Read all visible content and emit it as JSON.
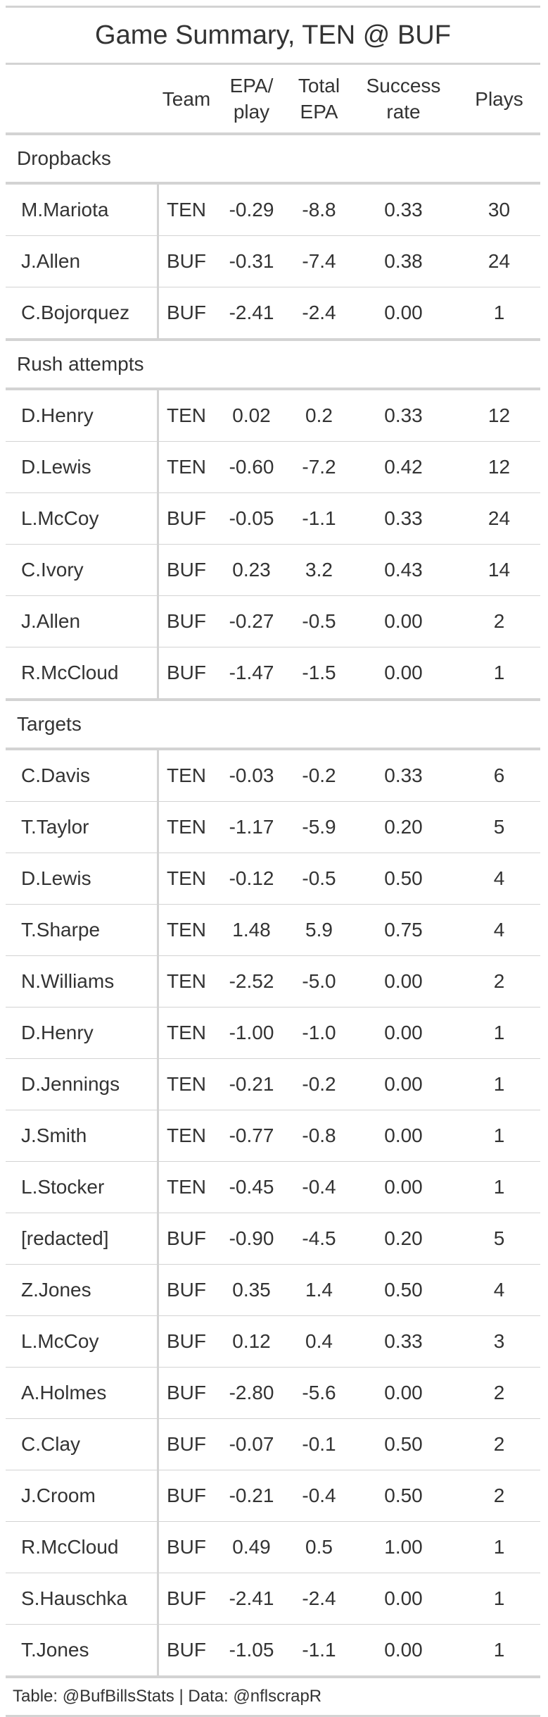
{
  "title": "Game Summary, TEN @ BUF",
  "columns": {
    "name": "",
    "team": "Team",
    "epa_line1": "EPA/",
    "epa_line2": "play",
    "total_line1": "Total",
    "total_line2": "EPA",
    "success_line1": "Success",
    "success_line2": "rate",
    "plays": "Plays"
  },
  "footer": "Table: @BufBillsStats | Data: @nflscrapR",
  "chart_data": {
    "type": "table",
    "title": "Game Summary, TEN @ BUF",
    "groups": [
      {
        "label": "Dropbacks",
        "rows": [
          {
            "name": "M.Mariota",
            "team": "TEN",
            "epa_play": "-0.29",
            "total_epa": "-8.8",
            "success_rate": "0.33",
            "plays": "30"
          },
          {
            "name": "J.Allen",
            "team": "BUF",
            "epa_play": "-0.31",
            "total_epa": "-7.4",
            "success_rate": "0.38",
            "plays": "24"
          },
          {
            "name": "C.Bojorquez",
            "team": "BUF",
            "epa_play": "-2.41",
            "total_epa": "-2.4",
            "success_rate": "0.00",
            "plays": "1"
          }
        ]
      },
      {
        "label": "Rush attempts",
        "rows": [
          {
            "name": "D.Henry",
            "team": "TEN",
            "epa_play": "0.02",
            "total_epa": "0.2",
            "success_rate": "0.33",
            "plays": "12"
          },
          {
            "name": "D.Lewis",
            "team": "TEN",
            "epa_play": "-0.60",
            "total_epa": "-7.2",
            "success_rate": "0.42",
            "plays": "12"
          },
          {
            "name": "L.McCoy",
            "team": "BUF",
            "epa_play": "-0.05",
            "total_epa": "-1.1",
            "success_rate": "0.33",
            "plays": "24"
          },
          {
            "name": "C.Ivory",
            "team": "BUF",
            "epa_play": "0.23",
            "total_epa": "3.2",
            "success_rate": "0.43",
            "plays": "14"
          },
          {
            "name": "J.Allen",
            "team": "BUF",
            "epa_play": "-0.27",
            "total_epa": "-0.5",
            "success_rate": "0.00",
            "plays": "2"
          },
          {
            "name": "R.McCloud",
            "team": "BUF",
            "epa_play": "-1.47",
            "total_epa": "-1.5",
            "success_rate": "0.00",
            "plays": "1"
          }
        ]
      },
      {
        "label": "Targets",
        "rows": [
          {
            "name": "C.Davis",
            "team": "TEN",
            "epa_play": "-0.03",
            "total_epa": "-0.2",
            "success_rate": "0.33",
            "plays": "6"
          },
          {
            "name": "T.Taylor",
            "team": "TEN",
            "epa_play": "-1.17",
            "total_epa": "-5.9",
            "success_rate": "0.20",
            "plays": "5"
          },
          {
            "name": "D.Lewis",
            "team": "TEN",
            "epa_play": "-0.12",
            "total_epa": "-0.5",
            "success_rate": "0.50",
            "plays": "4"
          },
          {
            "name": "T.Sharpe",
            "team": "TEN",
            "epa_play": "1.48",
            "total_epa": "5.9",
            "success_rate": "0.75",
            "plays": "4"
          },
          {
            "name": "N.Williams",
            "team": "TEN",
            "epa_play": "-2.52",
            "total_epa": "-5.0",
            "success_rate": "0.00",
            "plays": "2"
          },
          {
            "name": "D.Henry",
            "team": "TEN",
            "epa_play": "-1.00",
            "total_epa": "-1.0",
            "success_rate": "0.00",
            "plays": "1"
          },
          {
            "name": "D.Jennings",
            "team": "TEN",
            "epa_play": "-0.21",
            "total_epa": "-0.2",
            "success_rate": "0.00",
            "plays": "1"
          },
          {
            "name": "J.Smith",
            "team": "TEN",
            "epa_play": "-0.77",
            "total_epa": "-0.8",
            "success_rate": "0.00",
            "plays": "1"
          },
          {
            "name": "L.Stocker",
            "team": "TEN",
            "epa_play": "-0.45",
            "total_epa": "-0.4",
            "success_rate": "0.00",
            "plays": "1"
          },
          {
            "name": "[redacted]",
            "team": "BUF",
            "epa_play": "-0.90",
            "total_epa": "-4.5",
            "success_rate": "0.20",
            "plays": "5"
          },
          {
            "name": "Z.Jones",
            "team": "BUF",
            "epa_play": "0.35",
            "total_epa": "1.4",
            "success_rate": "0.50",
            "plays": "4"
          },
          {
            "name": "L.McCoy",
            "team": "BUF",
            "epa_play": "0.12",
            "total_epa": "0.4",
            "success_rate": "0.33",
            "plays": "3"
          },
          {
            "name": "A.Holmes",
            "team": "BUF",
            "epa_play": "-2.80",
            "total_epa": "-5.6",
            "success_rate": "0.00",
            "plays": "2"
          },
          {
            "name": "C.Clay",
            "team": "BUF",
            "epa_play": "-0.07",
            "total_epa": "-0.1",
            "success_rate": "0.50",
            "plays": "2"
          },
          {
            "name": "J.Croom",
            "team": "BUF",
            "epa_play": "-0.21",
            "total_epa": "-0.4",
            "success_rate": "0.50",
            "plays": "2"
          },
          {
            "name": "R.McCloud",
            "team": "BUF",
            "epa_play": "0.49",
            "total_epa": "0.5",
            "success_rate": "1.00",
            "plays": "1"
          },
          {
            "name": "S.Hauschka",
            "team": "BUF",
            "epa_play": "-2.41",
            "total_epa": "-2.4",
            "success_rate": "0.00",
            "plays": "1"
          },
          {
            "name": "T.Jones",
            "team": "BUF",
            "epa_play": "-1.05",
            "total_epa": "-1.1",
            "success_rate": "0.00",
            "plays": "1"
          }
        ]
      }
    ]
  }
}
